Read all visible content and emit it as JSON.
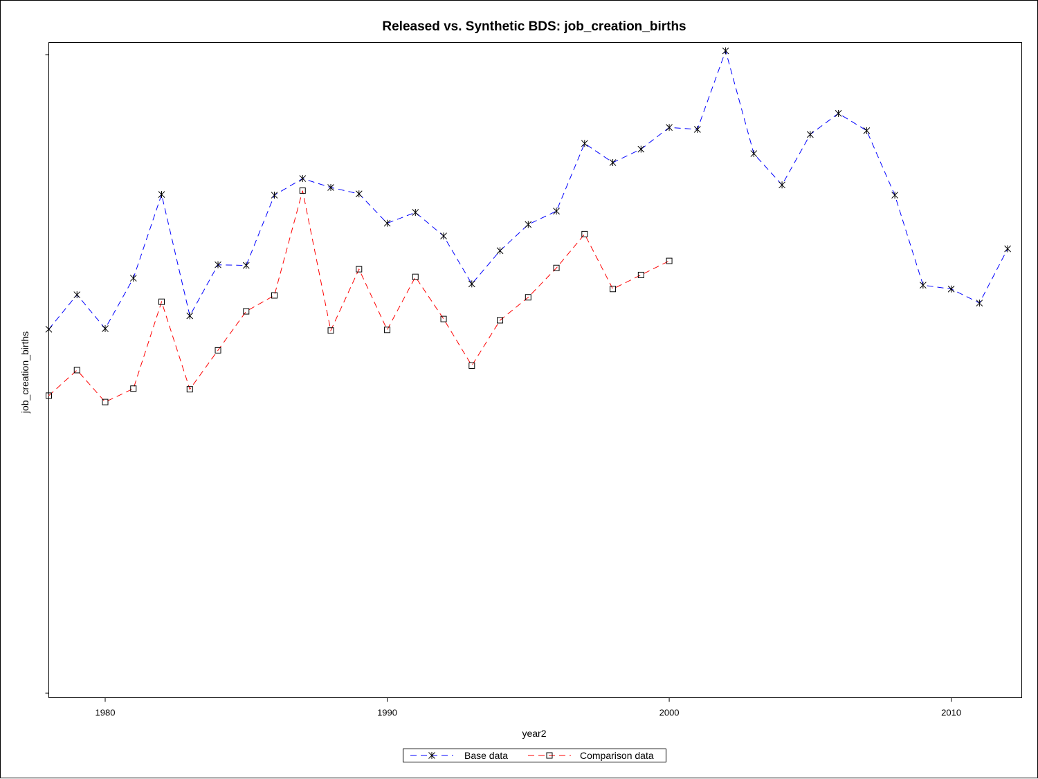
{
  "chart_data": {
    "type": "line",
    "title": "Released vs. Synthetic BDS: job_creation_births",
    "xlabel": "year2",
    "ylabel": "job_creation_births",
    "xlim": [
      1978,
      2012.5
    ],
    "ylim": [
      0,
      100
    ],
    "x_ticks": [
      1980,
      1990,
      2000,
      2010
    ],
    "y_tick_labels_shown": false,
    "grid": false,
    "legend_position": "bottom-center",
    "series": [
      {
        "name": "Base data",
        "color": "#0000ff",
        "line_style": "dashed",
        "marker": "star",
        "x": [
          1978,
          1979,
          1980,
          1981,
          1982,
          1983,
          1984,
          1985,
          1986,
          1987,
          1988,
          1989,
          1990,
          1991,
          1992,
          1993,
          1994,
          1995,
          1996,
          1997,
          1998,
          1999,
          2000,
          2001,
          2002,
          2003,
          2004,
          2005,
          2006,
          2007,
          2008,
          2009,
          2010,
          2011,
          2012
        ],
        "values": [
          57.0,
          62.4,
          57.1,
          65.0,
          78.1,
          59.1,
          67.1,
          67.0,
          78.0,
          80.6,
          79.2,
          78.2,
          73.6,
          75.3,
          71.6,
          64.1,
          69.3,
          73.4,
          75.5,
          86.1,
          83.1,
          85.2,
          88.6,
          88.3,
          100.6,
          84.5,
          79.6,
          87.5,
          90.8,
          88.1,
          78.0,
          63.9,
          63.3,
          61.1,
          69.6
        ]
      },
      {
        "name": "Comparison data",
        "color": "#ff0000",
        "line_style": "dashed",
        "marker": "square",
        "x": [
          1978,
          1979,
          1980,
          1981,
          1982,
          1983,
          1984,
          1985,
          1986,
          1987,
          1988,
          1989,
          1990,
          1991,
          1992,
          1993,
          1994,
          1995,
          1996,
          1997,
          1998,
          1999,
          2000
        ],
        "values": [
          46.6,
          50.6,
          45.6,
          47.7,
          61.3,
          47.6,
          53.7,
          59.8,
          62.3,
          78.7,
          56.8,
          66.4,
          56.9,
          65.2,
          58.6,
          51.3,
          58.4,
          62.0,
          66.6,
          71.9,
          63.3,
          65.5,
          67.7
        ]
      }
    ]
  }
}
